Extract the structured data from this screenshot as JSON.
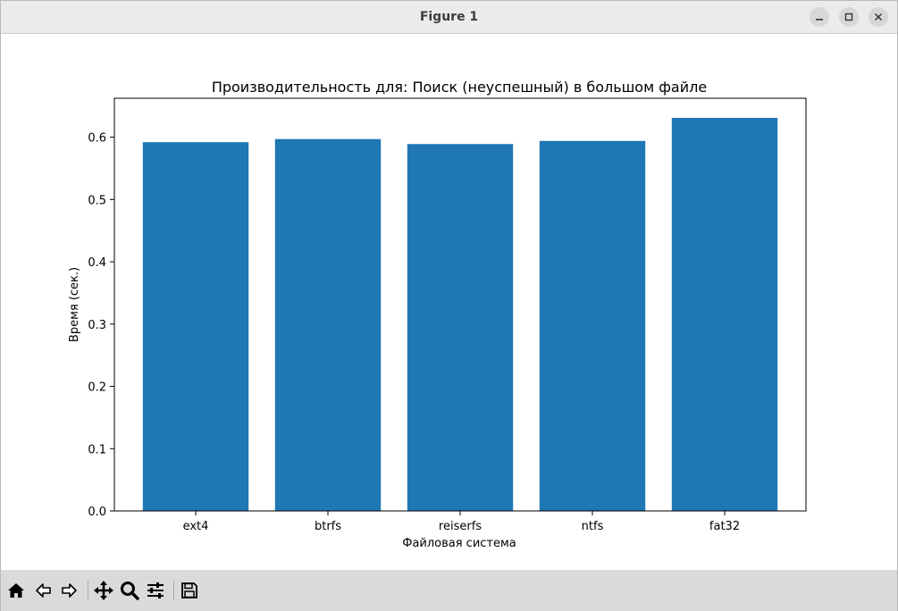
{
  "window": {
    "title": "Figure 1"
  },
  "toolbar": {
    "icons": [
      "home-icon",
      "back-icon",
      "forward-icon",
      "pan-icon",
      "zoom-icon",
      "configure-subplots-icon",
      "save-icon"
    ]
  },
  "colors": {
    "bar": "#1f77b4",
    "titlebar": "#ebebeb",
    "toolbar": "#dadada"
  },
  "chart_data": {
    "type": "bar",
    "title": "Производительность для: Поиск (неуспешный) в большом файле",
    "xlabel": "Файловая система",
    "ylabel": "Время (сек.)",
    "categories": [
      "ext4",
      "btrfs",
      "reiserfs",
      "ntfs",
      "fat32"
    ],
    "values": [
      0.592,
      0.597,
      0.589,
      0.594,
      0.631
    ],
    "ylim": [
      0,
      0.6625
    ],
    "yticks": [
      "0.0",
      "0.1",
      "0.2",
      "0.3",
      "0.4",
      "0.5",
      "0.6"
    ],
    "grid": false
  }
}
